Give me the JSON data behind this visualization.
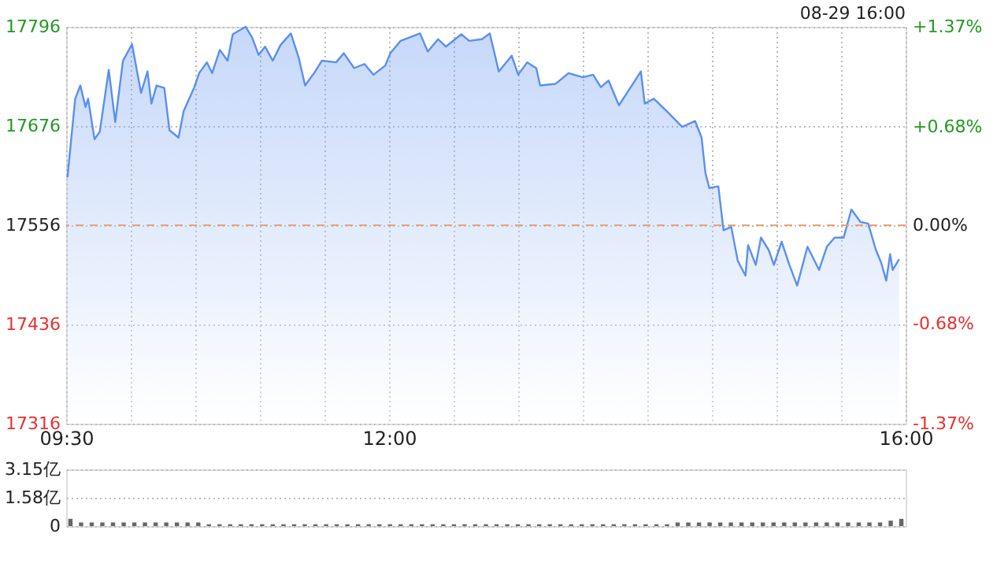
{
  "chart_data": [
    {
      "type": "area",
      "annotations": [
        "08-29 16:00"
      ],
      "x": [
        9.51,
        9.57,
        9.61,
        9.65,
        9.67,
        9.72,
        9.76,
        9.83,
        9.88,
        9.94,
        10.01,
        10.08,
        10.13,
        10.16,
        10.2,
        10.26,
        10.3,
        10.37,
        10.41,
        10.49,
        10.53,
        10.59,
        10.63,
        10.69,
        10.75,
        10.79,
        10.89,
        10.94,
        10.99,
        11.04,
        11.1,
        11.16,
        11.24,
        11.3,
        11.35,
        11.42,
        11.48,
        11.59,
        11.65,
        11.73,
        11.81,
        11.88,
        11.97,
        12.01,
        12.09,
        12.24,
        12.3,
        12.38,
        12.44,
        12.56,
        12.62,
        12.72,
        12.78,
        12.85,
        12.95,
        13.0,
        13.07,
        13.14,
        13.17,
        13.29,
        13.39,
        13.5,
        13.58,
        13.64,
        13.7,
        13.78,
        13.88,
        13.95,
        13.98,
        14.05,
        14.15,
        14.27,
        14.37,
        14.42,
        14.45,
        14.48,
        14.55,
        14.59,
        14.65,
        14.7,
        14.76,
        14.78,
        14.84,
        14.88,
        14.94,
        14.98,
        15.04,
        15.1,
        15.16,
        15.24,
        15.33,
        15.39,
        15.45,
        15.52,
        15.58,
        15.65,
        15.71,
        15.77,
        15.81,
        15.85,
        15.88,
        15.9,
        15.95
      ],
      "series": [
        {
          "color": "#5b8ff0",
          "values": [
            17614,
            17709,
            17725,
            17699,
            17709,
            17660,
            17669,
            17744,
            17681,
            17755,
            17775,
            17716,
            17742,
            17703,
            17725,
            17722,
            17671,
            17662,
            17694,
            17722,
            17740,
            17753,
            17740,
            17768,
            17755,
            17787,
            17796,
            17783,
            17762,
            17772,
            17755,
            17774,
            17788,
            17759,
            17725,
            17740,
            17755,
            17753,
            17764,
            17746,
            17751,
            17738,
            17749,
            17764,
            17779,
            17788,
            17766,
            17781,
            17772,
            17787,
            17779,
            17781,
            17788,
            17742,
            17761,
            17738,
            17753,
            17746,
            17725,
            17727,
            17740,
            17735,
            17738,
            17723,
            17731,
            17701,
            17725,
            17742,
            17703,
            17709,
            17694,
            17675,
            17682,
            17662,
            17619,
            17601,
            17603,
            17550,
            17554,
            17513,
            17495,
            17532,
            17508,
            17541,
            17526,
            17508,
            17536,
            17508,
            17483,
            17530,
            17502,
            17530,
            17541,
            17541,
            17575,
            17560,
            17558,
            17526,
            17511,
            17489,
            17521,
            17502,
            17515
          ]
        }
      ],
      "xlim": [
        9.5,
        16
      ],
      "xticks": [
        {
          "value": 9.5,
          "label": "09:30"
        },
        {
          "value": 10,
          "label": null
        },
        {
          "value": 10.5,
          "label": null
        },
        {
          "value": 11,
          "label": null
        },
        {
          "value": 11.5,
          "label": null
        },
        {
          "value": 12,
          "label": "12:00"
        },
        {
          "value": 12.5,
          "label": null
        },
        {
          "value": 13,
          "label": null
        },
        {
          "value": 13.5,
          "label": null
        },
        {
          "value": 14,
          "label": null
        },
        {
          "value": 14.5,
          "label": null
        },
        {
          "value": 15,
          "label": null
        },
        {
          "value": 15.5,
          "label": null
        },
        {
          "value": 16,
          "label": "16:00"
        }
      ],
      "ylim": [
        17316,
        17796
      ],
      "yticks": [
        17316,
        17436,
        17556,
        17676,
        17796
      ],
      "y2lim": [
        -1.37,
        1.37
      ],
      "y2ticks": [
        {
          "value": -1.37,
          "label": "-1.37%"
        },
        {
          "value": -0.68,
          "label": "-0.68%"
        },
        {
          "value": 0,
          "label": "0.00%"
        },
        {
          "value": 0.68,
          "label": "+0.68%"
        },
        {
          "value": 1.37,
          "label": "+1.37%"
        }
      ],
      "ref_lines": [
        {
          "axis": "y",
          "value": 17556,
          "color": "#f0a070",
          "line_style": "dashed"
        }
      ],
      "grid": true
    },
    {
      "type": "bar",
      "tick_labels": "y",
      "grid": "y",
      "categories": [
        null,
        null,
        null,
        null,
        null,
        null,
        null,
        null,
        null,
        null,
        null,
        null,
        null,
        null,
        null,
        null,
        null,
        null,
        null,
        null,
        null,
        null,
        null,
        null,
        null,
        null,
        null,
        null,
        null,
        null,
        null,
        null,
        null,
        null,
        null,
        null,
        null,
        null,
        null,
        null,
        null,
        null,
        null,
        null,
        null,
        null,
        null,
        null,
        null,
        null,
        null,
        null,
        null,
        null,
        null,
        null,
        null,
        null,
        null,
        null,
        null,
        null,
        null,
        null,
        null,
        null,
        null,
        null,
        null,
        null,
        null,
        null,
        null,
        null,
        null,
        null,
        null,
        null,
        null
      ],
      "series": [
        {
          "color": "#666666",
          "values": [
            0.4,
            0.2,
            0.2,
            0.2,
            0.2,
            0.2,
            0.2,
            0.2,
            0.2,
            0.2,
            0.2,
            0.2,
            0.2,
            0.1,
            0.1,
            0.1,
            0.1,
            0.1,
            0.1,
            0.1,
            0.1,
            0.1,
            0.1,
            0.1,
            0.1,
            0.1,
            0.1,
            0.1,
            0.1,
            0.1,
            0.1,
            0.1,
            0.1,
            0.1,
            0.1,
            0.1,
            0.1,
            0.1,
            0.1,
            0.1,
            0.1,
            0.1,
            0.1,
            0.1,
            0.1,
            0.1,
            0.1,
            0.1,
            0.1,
            0.1,
            0.1,
            0.1,
            0.1,
            0.1,
            0.1,
            0.1,
            0.1,
            0.2,
            0.2,
            0.2,
            0.2,
            0.2,
            0.2,
            0.2,
            0.2,
            0.2,
            0.2,
            0.2,
            0.2,
            0.2,
            0.2,
            0.2,
            0.2,
            0.2,
            0.2,
            0.2,
            0.2,
            0.3,
            0.4
          ]
        }
      ],
      "ylim": [
        0,
        3.15
      ],
      "yticks": [
        0,
        {
          "value": 1.58,
          "label": "1.58亿"
        },
        {
          "value": 3.15,
          "label": "3.15亿"
        }
      ]
    }
  ]
}
